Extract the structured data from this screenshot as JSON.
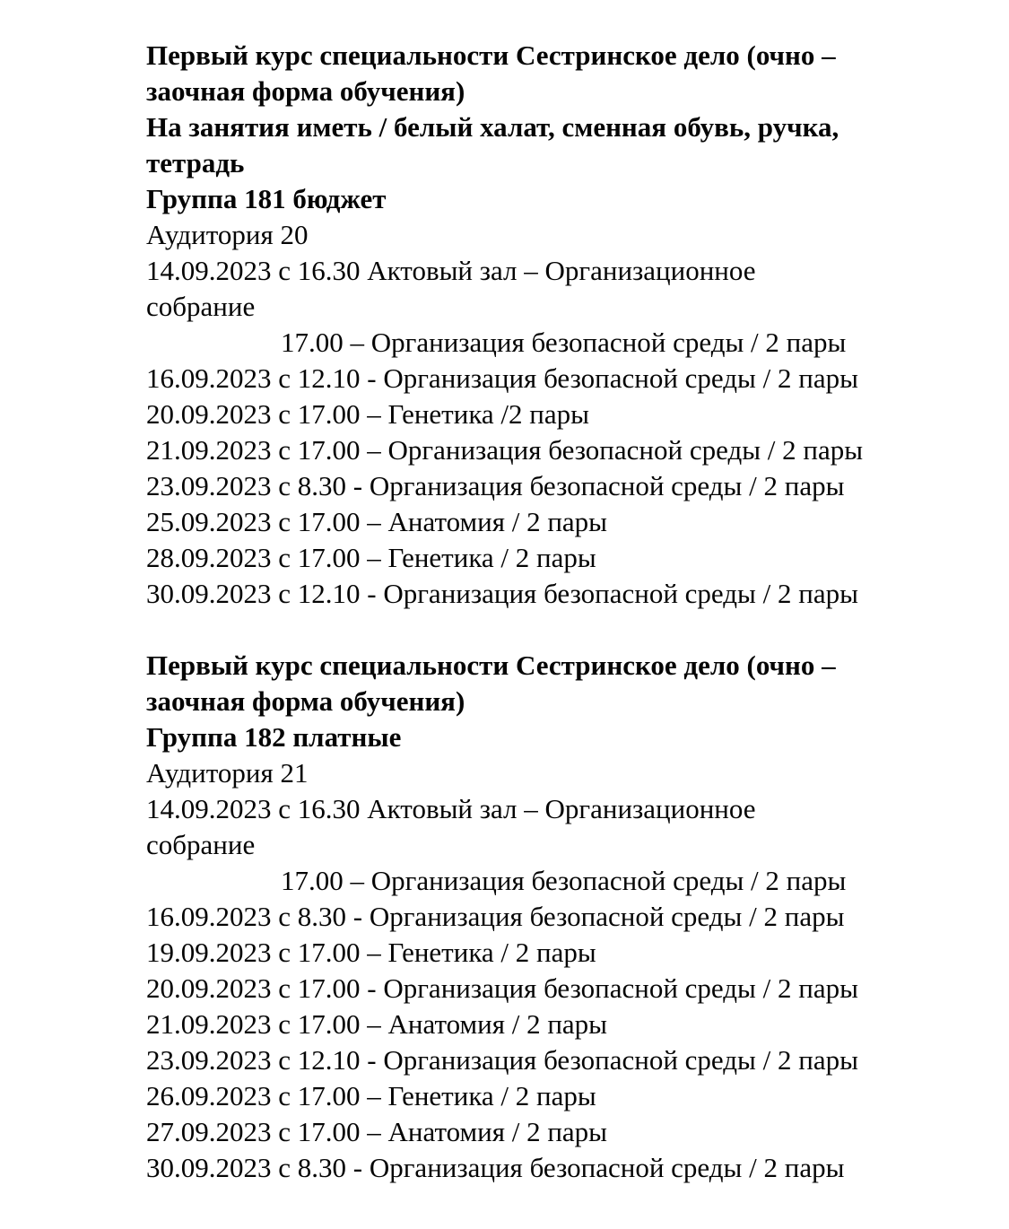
{
  "page": {
    "background": "#ffffff",
    "text_color": "#050505"
  },
  "blocks": [
    {
      "lines": [
        {
          "text": "Первый курс специальности Сестринское дело (очно –",
          "bold": true
        },
        {
          "text": "заочная форма обучения)",
          "bold": true
        },
        {
          "text": "На занятия иметь / белый халат, сменная обувь, ручка,",
          "bold": true
        },
        {
          "text": "тетрадь",
          "bold": true
        },
        {
          "text": "Группа 181 бюджет",
          "bold": true
        },
        {
          "text": "Аудитория 20",
          "bold": false
        },
        {
          "text": "14.09.2023 с 16.30 Актовый зал – Организационное",
          "bold": false
        },
        {
          "text": "собрание",
          "bold": false
        },
        {
          "text": "17.00 – Организация безопасной среды / 2 пары",
          "bold": false,
          "indent": true
        },
        {
          "text": "16.09.2023 с 12.10 - Организация безопасной среды / 2 пары",
          "bold": false
        },
        {
          "text": "20.09.2023 с 17.00 – Генетика /2 пары",
          "bold": false
        },
        {
          "text": "21.09.2023 с 17.00 – Организация безопасной среды / 2 пары",
          "bold": false
        },
        {
          "text": "23.09.2023 с 8.30 - Организация безопасной среды / 2 пары",
          "bold": false
        },
        {
          "text": "25.09.2023 с 17.00 – Анатомия / 2 пары",
          "bold": false
        },
        {
          "text": "28.09.2023 с 17.00 – Генетика / 2 пары",
          "bold": false
        },
        {
          "text": "30.09.2023 с 12.10 - Организация безопасной среды / 2 пары",
          "bold": false
        }
      ]
    },
    {
      "lines": [
        {
          "text": "Первый курс специальности Сестринское дело (очно –",
          "bold": true
        },
        {
          "text": "заочная форма обучения)",
          "bold": true
        },
        {
          "text": "Группа 182 платные",
          "bold": true
        },
        {
          "text": "Аудитория 21",
          "bold": false
        },
        {
          "text": "14.09.2023 с 16.30 Актовый зал – Организационное",
          "bold": false
        },
        {
          "text": "собрание",
          "bold": false
        },
        {
          "text": "17.00 – Организация безопасной среды / 2 пары",
          "bold": false,
          "indent": true
        },
        {
          "text": "16.09.2023 с 8.30 - Организация безопасной среды / 2 пары",
          "bold": false
        },
        {
          "text": "19.09.2023 с 17.00 – Генетика / 2 пары",
          "bold": false
        },
        {
          "text": "20.09.2023 с 17.00 - Организация безопасной среды / 2 пары",
          "bold": false
        },
        {
          "text": "21.09.2023 с 17.00 – Анатомия / 2 пары",
          "bold": false
        },
        {
          "text": "23.09.2023 с 12.10 - Организация безопасной среды / 2 пары",
          "bold": false
        },
        {
          "text": "26.09.2023 с 17.00 – Генетика / 2 пары",
          "bold": false
        },
        {
          "text": "27.09.2023 с 17.00 – Анатомия / 2 пары",
          "bold": false
        },
        {
          "text": "30.09.2023 с 8.30 - Организация безопасной среды / 2 пары",
          "bold": false
        }
      ]
    }
  ]
}
